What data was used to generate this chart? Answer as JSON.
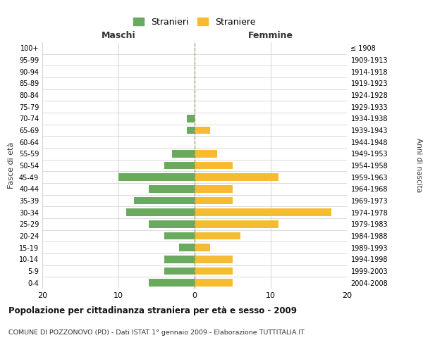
{
  "age_groups": [
    "0-4",
    "5-9",
    "10-14",
    "15-19",
    "20-24",
    "25-29",
    "30-34",
    "35-39",
    "40-44",
    "45-49",
    "50-54",
    "55-59",
    "60-64",
    "65-69",
    "70-74",
    "75-79",
    "80-84",
    "85-89",
    "90-94",
    "95-99",
    "100+"
  ],
  "birth_years": [
    "2004-2008",
    "1999-2003",
    "1994-1998",
    "1989-1993",
    "1984-1988",
    "1979-1983",
    "1974-1978",
    "1969-1973",
    "1964-1968",
    "1959-1963",
    "1954-1958",
    "1949-1953",
    "1944-1948",
    "1939-1943",
    "1934-1938",
    "1929-1933",
    "1924-1928",
    "1919-1923",
    "1914-1918",
    "1909-1913",
    "≤ 1908"
  ],
  "maschi": [
    6,
    4,
    4,
    2,
    4,
    6,
    9,
    8,
    6,
    10,
    4,
    3,
    0,
    1,
    1,
    0,
    0,
    0,
    0,
    0,
    0
  ],
  "femmine": [
    5,
    5,
    5,
    2,
    6,
    11,
    18,
    5,
    5,
    11,
    5,
    3,
    0,
    2,
    0,
    0,
    0,
    0,
    0,
    0,
    0
  ],
  "color_maschi": "#6aaa5e",
  "color_femmine": "#f5bc2f",
  "title": "Popolazione per cittadinanza straniera per età e sesso - 2009",
  "subtitle": "COMUNE DI POZZONOVO (PD) - Dati ISTAT 1° gennaio 2009 - Elaborazione TUTTITALIA.IT",
  "xlabel_left": "Maschi",
  "xlabel_right": "Femmine",
  "ylabel_left": "Fasce di età",
  "ylabel_right": "Anni di nascita",
  "legend_maschi": "Stranieri",
  "legend_femmine": "Straniere",
  "xlim": 20,
  "background_color": "#ffffff",
  "grid_color": "#cccccc"
}
